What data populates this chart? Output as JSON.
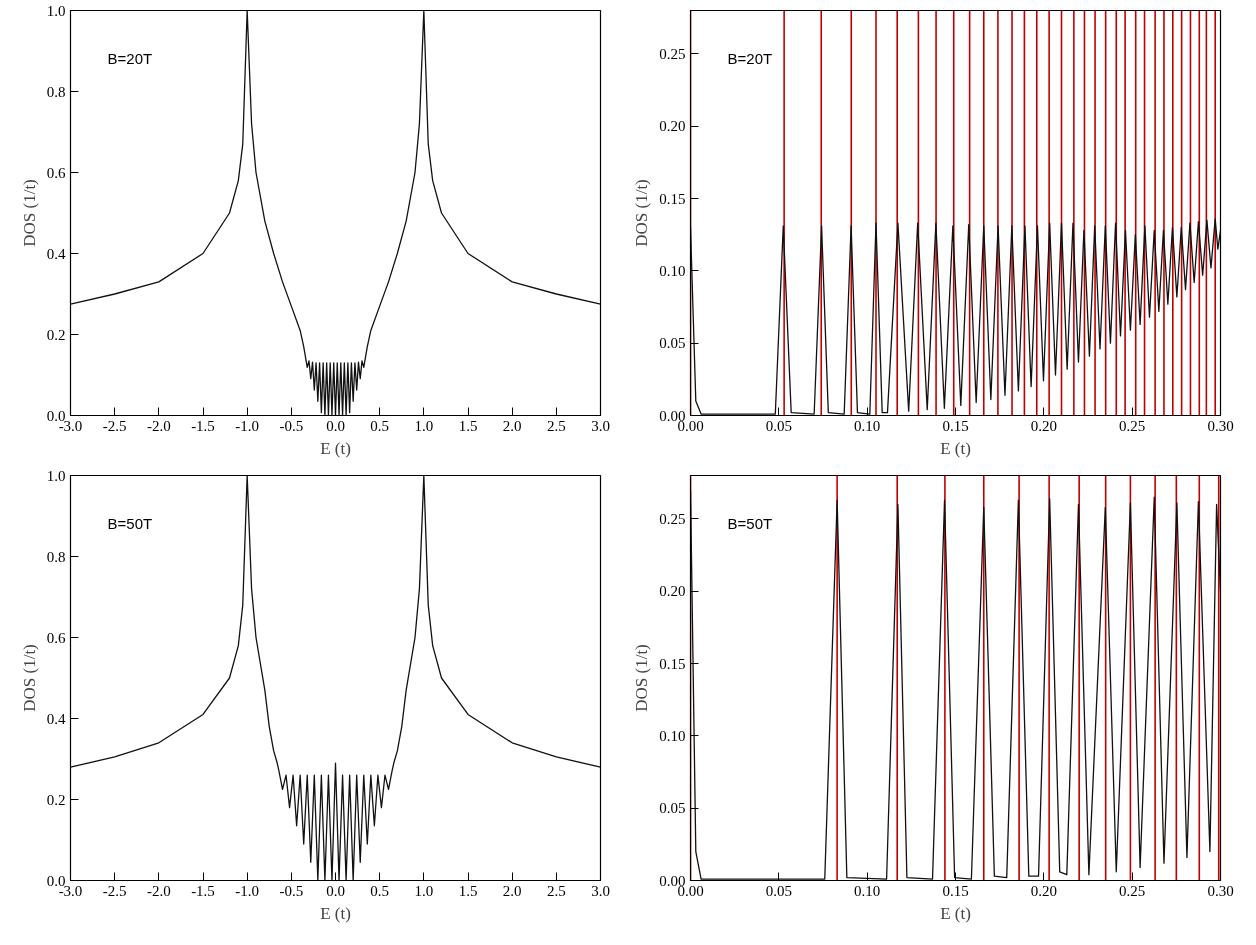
{
  "chart_data": [
    {
      "type": "line",
      "xlabel": "E (t)",
      "ylabel": "DOS (1/t)",
      "annotations": [
        "B=20T"
      ],
      "xlim": [
        -3,
        3
      ],
      "ylim": [
        0,
        1
      ],
      "xticks": [
        {
          "value": -3,
          "label": "-3.0"
        },
        {
          "value": -2.5,
          "label": "-2.5"
        },
        {
          "value": -2,
          "label": "-2.0"
        },
        {
          "value": -1.5,
          "label": "-1.5"
        },
        {
          "value": -1,
          "label": "-1.0"
        },
        {
          "value": -0.5,
          "label": "-0.5"
        },
        {
          "value": 0,
          "label": "0.0"
        },
        {
          "value": 0.5,
          "label": "0.5"
        },
        {
          "value": 1,
          "label": "1.0"
        },
        {
          "value": 1.5,
          "label": "1.5"
        },
        {
          "value": 2,
          "label": "2.0"
        },
        {
          "value": 2.5,
          "label": "2.5"
        },
        {
          "value": 3,
          "label": "3.0"
        }
      ],
      "yticks": [
        {
          "value": 0,
          "label": "0.0"
        },
        {
          "value": 0.2,
          "label": "0.2"
        },
        {
          "value": 0.4,
          "label": "0.4"
        },
        {
          "value": 0.6,
          "label": "0.6"
        },
        {
          "value": 0.8,
          "label": "0.8"
        },
        {
          "value": 1,
          "label": "1.0"
        }
      ],
      "series": [
        {
          "color": "#111111",
          "x": [
            -3,
            -2.5,
            -2,
            -1.5,
            -1.2,
            -1.1,
            -1.05,
            -1.0,
            -0.95,
            -0.9,
            -0.8,
            -0.7,
            -0.6,
            -0.5,
            -0.4,
            -0.36,
            -0.34,
            -0.32,
            -0.3,
            -0.28,
            -0.26,
            -0.24,
            -0.22,
            -0.2,
            -0.18,
            -0.16,
            -0.14,
            -0.12,
            -0.1,
            -0.08,
            -0.06,
            -0.04,
            -0.02,
            0,
            0.02,
            0.04,
            0.06,
            0.08,
            0.1,
            0.12,
            0.14,
            0.16,
            0.18,
            0.2,
            0.22,
            0.24,
            0.26,
            0.28,
            0.3,
            0.32,
            0.34,
            0.36,
            0.4,
            0.5,
            0.6,
            0.7,
            0.8,
            0.9,
            0.95,
            1.0,
            1.05,
            1.1,
            1.2,
            1.5,
            2,
            2.5,
            3
          ],
          "values": [
            0.275,
            0.3,
            0.33,
            0.4,
            0.5,
            0.58,
            0.67,
            1.0,
            0.72,
            0.6,
            0.48,
            0.4,
            0.33,
            0.27,
            0.21,
            0.17,
            0.145,
            0.119,
            0.135,
            0.091,
            0.132,
            0.063,
            0.13,
            0.035,
            0.13,
            0.007,
            0.13,
            0,
            0.13,
            0,
            0.13,
            0,
            0.13,
            0,
            0.13,
            0,
            0.13,
            0,
            0.13,
            0,
            0.13,
            0.007,
            0.13,
            0.035,
            0.13,
            0.063,
            0.132,
            0.091,
            0.135,
            0.119,
            0.145,
            0.17,
            0.21,
            0.27,
            0.33,
            0.4,
            0.48,
            0.6,
            0.72,
            1.0,
            0.67,
            0.58,
            0.5,
            0.4,
            0.33,
            0.3,
            0.275
          ]
        }
      ]
    },
    {
      "type": "line",
      "xlabel": "E (t)",
      "ylabel": "DOS (1/t)",
      "annotations": [
        "B=20T"
      ],
      "xlim": [
        0,
        0.3
      ],
      "ylim": [
        0,
        0.28
      ],
      "xticks": [
        {
          "value": 0,
          "label": "0.00"
        },
        {
          "value": 0.05,
          "label": "0.05"
        },
        {
          "value": 0.1,
          "label": "0.10"
        },
        {
          "value": 0.15,
          "label": "0.15"
        },
        {
          "value": 0.2,
          "label": "0.20"
        },
        {
          "value": 0.25,
          "label": "0.25"
        },
        {
          "value": 0.3,
          "label": "0.30"
        }
      ],
      "yticks": [
        {
          "value": 0,
          "label": "0.00"
        },
        {
          "value": 0.05,
          "label": "0.05"
        },
        {
          "value": 0.1,
          "label": "0.10"
        },
        {
          "value": 0.15,
          "label": "0.15"
        },
        {
          "value": 0.2,
          "label": "0.20"
        },
        {
          "value": 0.25,
          "label": "0.25"
        }
      ],
      "series": [
        {
          "color": "#111111",
          "x": [
            0,
            0.003,
            0.006,
            0.048,
            0.0525,
            0.057,
            0.07,
            0.0742,
            0.078,
            0.087,
            0.0909,
            0.0945,
            0.1015,
            0.105,
            0.1085,
            0.1115,
            0.1174,
            0.1235,
            0.1286,
            0.134,
            0.1389,
            0.1437,
            0.1485,
            0.153,
            0.1575,
            0.1617,
            0.166,
            0.17,
            0.1741,
            0.178,
            0.1819,
            0.1856,
            0.1893,
            0.1928,
            0.1964,
            0.1998,
            0.2033,
            0.2066,
            0.21,
            0.2132,
            0.2165,
            0.2196,
            0.2227,
            0.2258,
            0.2288,
            0.2318,
            0.2348,
            0.2377,
            0.2406,
            0.2434,
            0.2462,
            0.249,
            0.2518,
            0.2545,
            0.2572,
            0.2598,
            0.2625,
            0.2651,
            0.2677,
            0.2702,
            0.2728,
            0.2753,
            0.2778,
            0.2802,
            0.2827,
            0.2851,
            0.2875,
            0.2899,
            0.2923,
            0.2946,
            0.297,
            0.2985,
            0.3
          ],
          "values": [
            0.13,
            0.01,
            0.001,
            0.001,
            0.131,
            0.002,
            0.001,
            0.131,
            0.002,
            0.001,
            0.131,
            0.002,
            0.001,
            0.133,
            0.002,
            0.002,
            0.133,
            0.003,
            0.133,
            0.004,
            0.133,
            0.005,
            0.131,
            0.007,
            0.132,
            0.009,
            0.131,
            0.011,
            0.131,
            0.014,
            0.131,
            0.017,
            0.131,
            0.02,
            0.131,
            0.024,
            0.133,
            0.028,
            0.133,
            0.032,
            0.133,
            0.037,
            0.128,
            0.041,
            0.131,
            0.046,
            0.131,
            0.05,
            0.133,
            0.055,
            0.128,
            0.059,
            0.125,
            0.063,
            0.131,
            0.068,
            0.128,
            0.072,
            0.128,
            0.077,
            0.13,
            0.082,
            0.13,
            0.087,
            0.133,
            0.092,
            0.134,
            0.097,
            0.135,
            0.102,
            0.136,
            0.115,
            0.128
          ]
        }
      ],
      "ref_lines": [
        {
          "axis": "x",
          "value": 0,
          "color": "#c00000"
        },
        {
          "axis": "x",
          "value": 0.053,
          "color": "#c00000"
        },
        {
          "axis": "x",
          "value": 0.074,
          "color": "#c00000"
        },
        {
          "axis": "x",
          "value": 0.091,
          "color": "#c00000"
        },
        {
          "axis": "x",
          "value": 0.105,
          "color": "#c00000"
        },
        {
          "axis": "x",
          "value": 0.117,
          "color": "#c00000"
        },
        {
          "axis": "x",
          "value": 0.129,
          "color": "#c00000"
        },
        {
          "axis": "x",
          "value": 0.139,
          "color": "#c00000"
        },
        {
          "axis": "x",
          "value": 0.149,
          "color": "#c00000"
        },
        {
          "axis": "x",
          "value": 0.158,
          "color": "#c00000"
        },
        {
          "axis": "x",
          "value": 0.166,
          "color": "#c00000"
        },
        {
          "axis": "x",
          "value": 0.174,
          "color": "#c00000"
        },
        {
          "axis": "x",
          "value": 0.182,
          "color": "#c00000"
        },
        {
          "axis": "x",
          "value": 0.189,
          "color": "#c00000"
        },
        {
          "axis": "x",
          "value": 0.196,
          "color": "#c00000"
        },
        {
          "axis": "x",
          "value": 0.203,
          "color": "#c00000"
        },
        {
          "axis": "x",
          "value": 0.21,
          "color": "#c00000"
        },
        {
          "axis": "x",
          "value": 0.217,
          "color": "#c00000"
        },
        {
          "axis": "x",
          "value": 0.223,
          "color": "#c00000"
        },
        {
          "axis": "x",
          "value": 0.229,
          "color": "#c00000"
        },
        {
          "axis": "x",
          "value": 0.235,
          "color": "#c00000"
        },
        {
          "axis": "x",
          "value": 0.241,
          "color": "#c00000"
        },
        {
          "axis": "x",
          "value": 0.246,
          "color": "#c00000"
        },
        {
          "axis": "x",
          "value": 0.252,
          "color": "#c00000"
        },
        {
          "axis": "x",
          "value": 0.257,
          "color": "#c00000"
        },
        {
          "axis": "x",
          "value": 0.263,
          "color": "#c00000"
        },
        {
          "axis": "x",
          "value": 0.268,
          "color": "#c00000"
        },
        {
          "axis": "x",
          "value": 0.273,
          "color": "#c00000"
        },
        {
          "axis": "x",
          "value": 0.278,
          "color": "#c00000"
        },
        {
          "axis": "x",
          "value": 0.283,
          "color": "#c00000"
        },
        {
          "axis": "x",
          "value": 0.288,
          "color": "#c00000"
        },
        {
          "axis": "x",
          "value": 0.292,
          "color": "#c00000"
        },
        {
          "axis": "x",
          "value": 0.297,
          "color": "#c00000"
        }
      ]
    },
    {
      "type": "line",
      "xlabel": "E (t)",
      "ylabel": "DOS (1/t)",
      "annotations": [
        "B=50T"
      ],
      "xlim": [
        -3,
        3
      ],
      "ylim": [
        0,
        1
      ],
      "xticks": [
        {
          "value": -3,
          "label": "-3.0"
        },
        {
          "value": -2.5,
          "label": "-2.5"
        },
        {
          "value": -2,
          "label": "-2.0"
        },
        {
          "value": -1.5,
          "label": "-1.5"
        },
        {
          "value": -1,
          "label": "-1.0"
        },
        {
          "value": -0.5,
          "label": "-0.5"
        },
        {
          "value": 0,
          "label": "0.0"
        },
        {
          "value": 0.5,
          "label": "0.5"
        },
        {
          "value": 1,
          "label": "1.0"
        },
        {
          "value": 1.5,
          "label": "1.5"
        },
        {
          "value": 2,
          "label": "2.0"
        },
        {
          "value": 2.5,
          "label": "2.5"
        },
        {
          "value": 3,
          "label": "3.0"
        }
      ],
      "yticks": [
        {
          "value": 0,
          "label": "0.0"
        },
        {
          "value": 0.2,
          "label": "0.2"
        },
        {
          "value": 0.4,
          "label": "0.4"
        },
        {
          "value": 0.6,
          "label": "0.6"
        },
        {
          "value": 0.8,
          "label": "0.8"
        },
        {
          "value": 1,
          "label": "1.0"
        }
      ],
      "series": [
        {
          "color": "#111111",
          "x": [
            -3,
            -2.5,
            -2,
            -1.5,
            -1.2,
            -1.1,
            -1.05,
            -1.0,
            -0.95,
            -0.9,
            -0.8,
            -0.75,
            -0.7,
            -0.66,
            -0.64,
            -0.6,
            -0.56,
            -0.52,
            -0.48,
            -0.44,
            -0.4,
            -0.36,
            -0.32,
            -0.28,
            -0.24,
            -0.2,
            -0.16,
            -0.12,
            -0.08,
            -0.04,
            0,
            0.04,
            0.08,
            0.12,
            0.16,
            0.2,
            0.24,
            0.28,
            0.32,
            0.36,
            0.4,
            0.44,
            0.48,
            0.52,
            0.56,
            0.6,
            0.64,
            0.66,
            0.7,
            0.75,
            0.8,
            0.9,
            0.95,
            1.0,
            1.05,
            1.1,
            1.2,
            1.5,
            2,
            2.5,
            3
          ],
          "values": [
            0.28,
            0.305,
            0.34,
            0.41,
            0.5,
            0.58,
            0.68,
            1.0,
            0.72,
            0.6,
            0.47,
            0.38,
            0.32,
            0.29,
            0.27,
            0.225,
            0.26,
            0.18,
            0.26,
            0.135,
            0.26,
            0.09,
            0.26,
            0.045,
            0.26,
            0,
            0.26,
            0,
            0.26,
            0,
            0.29,
            0,
            0.26,
            0,
            0.26,
            0,
            0.26,
            0.045,
            0.26,
            0.09,
            0.26,
            0.135,
            0.26,
            0.18,
            0.26,
            0.225,
            0.27,
            0.29,
            0.32,
            0.38,
            0.47,
            0.6,
            0.72,
            1.0,
            0.68,
            0.58,
            0.5,
            0.41,
            0.34,
            0.305,
            0.28
          ]
        }
      ]
    },
    {
      "type": "line",
      "xlabel": "E (t)",
      "ylabel": "DOS (1/t)",
      "annotations": [
        "B=50T"
      ],
      "xlim": [
        0,
        0.3
      ],
      "ylim": [
        0,
        0.28
      ],
      "xticks": [
        {
          "value": 0,
          "label": "0.00"
        },
        {
          "value": 0.05,
          "label": "0.05"
        },
        {
          "value": 0.1,
          "label": "0.10"
        },
        {
          "value": 0.15,
          "label": "0.15"
        },
        {
          "value": 0.2,
          "label": "0.20"
        },
        {
          "value": 0.25,
          "label": "0.25"
        },
        {
          "value": 0.3,
          "label": "0.30"
        }
      ],
      "yticks": [
        {
          "value": 0,
          "label": "0.00"
        },
        {
          "value": 0.05,
          "label": "0.05"
        },
        {
          "value": 0.1,
          "label": "0.10"
        },
        {
          "value": 0.15,
          "label": "0.15"
        },
        {
          "value": 0.2,
          "label": "0.20"
        },
        {
          "value": 0.25,
          "label": "0.25"
        }
      ],
      "series": [
        {
          "color": "#111111",
          "x": [
            0,
            0.003,
            0.006,
            0.076,
            0.083,
            0.0885,
            0.111,
            0.1174,
            0.1225,
            0.137,
            0.1438,
            0.1495,
            0.159,
            0.166,
            0.172,
            0.179,
            0.1856,
            0.1915,
            0.197,
            0.2033,
            0.209,
            0.213,
            0.2196,
            0.2255,
            0.2348,
            0.241,
            0.249,
            0.2545,
            0.2625,
            0.268,
            0.2753,
            0.281,
            0.2875,
            0.294,
            0.2978,
            0.3
          ],
          "values": [
            0.27,
            0.02,
            0.001,
            0.001,
            0.263,
            0.002,
            0.001,
            0.26,
            0.002,
            0.001,
            0.263,
            0.002,
            0.001,
            0.258,
            0.003,
            0.002,
            0.263,
            0.003,
            0.003,
            0.264,
            0.006,
            0.004,
            0.26,
            0.004,
            0.258,
            0.006,
            0.261,
            0.009,
            0.265,
            0.012,
            0.261,
            0.016,
            0.262,
            0.02,
            0.26,
            0.2
          ]
        }
      ],
      "ref_lines": [
        {
          "axis": "x",
          "value": 0,
          "color": "#c00000"
        },
        {
          "axis": "x",
          "value": 0.083,
          "color": "#c00000"
        },
        {
          "axis": "x",
          "value": 0.117,
          "color": "#c00000"
        },
        {
          "axis": "x",
          "value": 0.144,
          "color": "#c00000"
        },
        {
          "axis": "x",
          "value": 0.166,
          "color": "#c00000"
        },
        {
          "axis": "x",
          "value": 0.186,
          "color": "#c00000"
        },
        {
          "axis": "x",
          "value": 0.203,
          "color": "#c00000"
        },
        {
          "axis": "x",
          "value": 0.22,
          "color": "#c00000"
        },
        {
          "axis": "x",
          "value": 0.235,
          "color": "#c00000"
        },
        {
          "axis": "x",
          "value": 0.249,
          "color": "#c00000"
        },
        {
          "axis": "x",
          "value": 0.263,
          "color": "#c00000"
        },
        {
          "axis": "x",
          "value": 0.275,
          "color": "#c00000"
        },
        {
          "axis": "x",
          "value": 0.288,
          "color": "#c00000"
        },
        {
          "axis": "x",
          "value": 0.299,
          "color": "#c00000"
        }
      ]
    }
  ]
}
